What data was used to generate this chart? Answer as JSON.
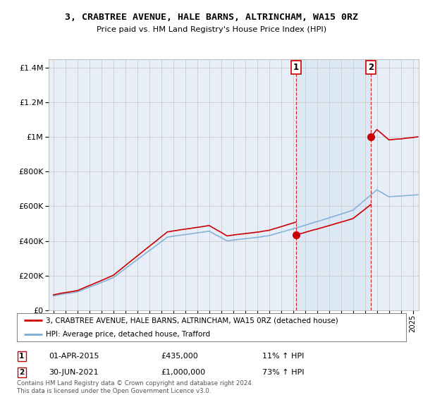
{
  "title": "3, CRABTREE AVENUE, HALE BARNS, ALTRINCHAM, WA15 0RZ",
  "subtitle": "Price paid vs. HM Land Registry's House Price Index (HPI)",
  "legend_line1": "3, CRABTREE AVENUE, HALE BARNS, ALTRINCHAM, WA15 0RZ (detached house)",
  "legend_line2": "HPI: Average price, detached house, Trafford",
  "annotation1_date": "01-APR-2015",
  "annotation1_price": "£435,000",
  "annotation1_hpi": "11% ↑ HPI",
  "annotation2_date": "30-JUN-2021",
  "annotation2_price": "£1,000,000",
  "annotation2_hpi": "73% ↑ HPI",
  "footer": "Contains HM Land Registry data © Crown copyright and database right 2024.\nThis data is licensed under the Open Government Licence v3.0.",
  "sale1_x": 2015.25,
  "sale1_y": 435000,
  "sale2_x": 2021.5,
  "sale2_y": 1000000,
  "hpi_color": "#7dadd4",
  "price_color": "#cc0000",
  "dashed_color": "#cc0000",
  "background_color": "#e8eef8",
  "shade_color": "#dce8f5",
  "grid_color": "#cccccc",
  "ylim": [
    0,
    1450000
  ],
  "xlim_start": 1994.6,
  "xlim_end": 2025.5,
  "first_purchase_price": 88000,
  "first_purchase_year": 1995.0
}
